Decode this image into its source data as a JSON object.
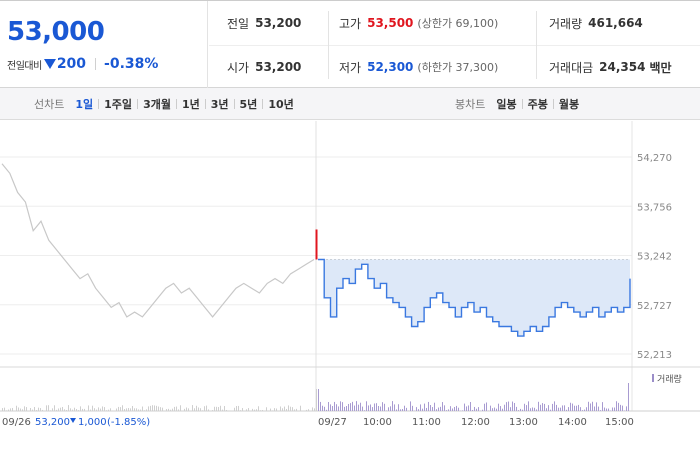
{
  "summary": {
    "current_price": "53,000",
    "change_label": "전일대비",
    "change_value": "200",
    "change_rate": "-0.38%",
    "prev_close_label": "전일",
    "prev_close": "53,200",
    "open_label": "시가",
    "open": "53,200",
    "high_label": "고가",
    "high": "53,500",
    "upper_limit": "(상한가 69,100)",
    "low_label": "저가",
    "low": "52,300",
    "lower_limit": "(하한가 37,300)",
    "volume_label": "거래량",
    "volume": "461,664",
    "amount_label": "거래대금",
    "amount": "24,354",
    "amount_unit": "백만"
  },
  "toolbar": {
    "line_label": "선차트",
    "line_ranges": [
      "1일",
      "1주일",
      "3개월",
      "1년",
      "3년",
      "5년",
      "10년"
    ],
    "active_range": "1일",
    "candle_label": "봉차트",
    "candle_ranges": [
      "일봉",
      "주봉",
      "월봉"
    ]
  },
  "colors": {
    "up": "#e0161f",
    "down": "#1a58d4",
    "price_line": "#3a78e0",
    "fill": "#dde8f8",
    "prev_line_gray": "#c8c8c8",
    "volume_legend": "#9b8ec9"
  },
  "chart_data": {
    "type": "line",
    "y_ticks": [
      "54,270",
      "53,756",
      "53,242",
      "52,727",
      "52,213"
    ],
    "ylim": [
      52213,
      54270
    ],
    "x_ticks": [
      "09/27",
      "10:00",
      "11:00",
      "12:00",
      "13:00",
      "14:00",
      "15:00"
    ],
    "prev_day": {
      "date": "09/26",
      "close": "53,200",
      "change": "1,000",
      "rate": "(-1.85%)",
      "values": [
        54200,
        54100,
        53900,
        53800,
        53500,
        53600,
        53400,
        53300,
        53200,
        53100,
        53000,
        53050,
        52900,
        52800,
        52700,
        52750,
        52600,
        52650,
        52600,
        52700,
        52800,
        52900,
        52950,
        52850,
        52900,
        52800,
        52700,
        52600,
        52700,
        52800,
        52900,
        52950,
        52900,
        52850,
        52950,
        53000,
        52950,
        53050,
        53100,
        53150,
        53200
      ]
    },
    "today": {
      "values": [
        53200,
        52800,
        52600,
        52900,
        53000,
        52950,
        53100,
        53150,
        53000,
        52900,
        52950,
        52800,
        52750,
        52700,
        52600,
        52500,
        52550,
        52700,
        52800,
        52850,
        52750,
        52700,
        52600,
        52700,
        52750,
        52650,
        52700,
        52600,
        52550,
        52500,
        52500,
        52450,
        52400,
        52450,
        52500,
        52450,
        52500,
        52600,
        52700,
        52750,
        52700,
        52650,
        52600,
        52650,
        52700,
        52600,
        52650,
        52700,
        52650,
        52700,
        53000
      ]
    },
    "prev_close_ref": 53200,
    "volume_legend": "거래량"
  }
}
